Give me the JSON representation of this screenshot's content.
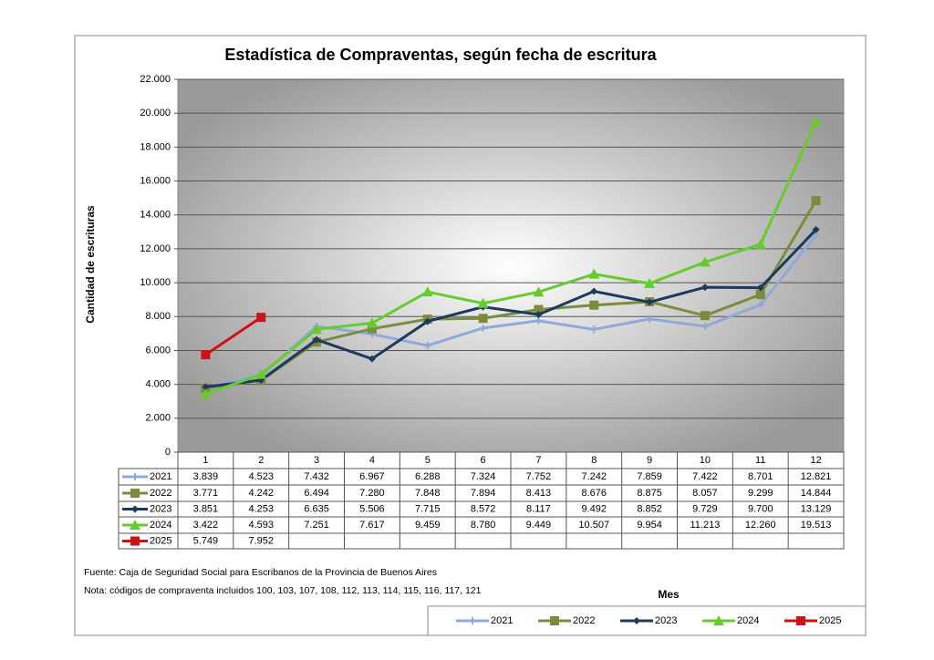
{
  "chart_data": {
    "type": "line",
    "title": "Estadística de Compraventas, según fecha de escritura",
    "y_label": "Cantidad de escrituras",
    "x_label": "Mes",
    "source": "Fuente: Caja de Seguridad Social para Escribanos de la Provincia de Buenos Aires",
    "note": "Nota: códigos de compraventa incluidos 100, 103, 107, 108, 112, 113, 114, 115, 116, 117, 121",
    "categories": [
      "1",
      "2",
      "3",
      "4",
      "5",
      "6",
      "7",
      "8",
      "9",
      "10",
      "11",
      "12"
    ],
    "ylim": [
      0,
      22000
    ],
    "yticks": [
      0,
      {
        "value": 2000,
        "label": "2.000"
      },
      {
        "value": 4000,
        "label": "4.000"
      },
      {
        "value": 6000,
        "label": "6.000"
      },
      {
        "value": 8000,
        "label": "8.000"
      },
      {
        "value": 10000,
        "label": "10.000"
      },
      {
        "value": 12000,
        "label": "12.000"
      },
      {
        "value": 14000,
        "label": "14.000"
      },
      {
        "value": 16000,
        "label": "16.000"
      },
      {
        "value": 18000,
        "label": "18.000"
      },
      {
        "value": 20000,
        "label": "20.000"
      },
      {
        "value": 22000,
        "label": "22.000"
      }
    ],
    "grid": true,
    "series": [
      {
        "name": "2021",
        "color": "#8faad8",
        "marker": "plus",
        "values": [
          3839,
          4523,
          7432,
          6967,
          6288,
          7324,
          7752,
          7242,
          7859,
          7422,
          8701,
          12821
        ],
        "value_labels": [
          "3.839",
          "4.523",
          "7.432",
          "6.967",
          "6.288",
          "7.324",
          "7.752",
          "7.242",
          "7.859",
          "7.422",
          "8.701",
          "12.821"
        ]
      },
      {
        "name": "2022",
        "color": "#7b8c3c",
        "marker": "square",
        "values": [
          3771,
          4242,
          6494,
          7280,
          7848,
          7894,
          8413,
          8676,
          8875,
          8057,
          9299,
          14844
        ],
        "value_labels": [
          "3.771",
          "4.242",
          "6.494",
          "7.280",
          "7.848",
          "7.894",
          "8.413",
          "8.676",
          "8.875",
          "8.057",
          "9.299",
          "14.844"
        ]
      },
      {
        "name": "2023",
        "color": "#1d3a5e",
        "marker": "diamond",
        "values": [
          3851,
          4253,
          6635,
          5506,
          7715,
          8572,
          8117,
          9492,
          8852,
          9729,
          9700,
          13129
        ],
        "value_labels": [
          "3.851",
          "4.253",
          "6.635",
          "5.506",
          "7.715",
          "8.572",
          "8.117",
          "9.492",
          "8.852",
          "9.729",
          "9.700",
          "13.129"
        ]
      },
      {
        "name": "2024",
        "color": "#66cc2e",
        "marker": "triangle",
        "values": [
          3422,
          4593,
          7251,
          7617,
          9459,
          8780,
          9449,
          10507,
          9954,
          11213,
          12260,
          19513
        ],
        "value_labels": [
          "3.422",
          "4.593",
          "7.251",
          "7.617",
          "9.459",
          "8.780",
          "9.449",
          "10.507",
          "9.954",
          "11.213",
          "12.260",
          "19.513"
        ]
      },
      {
        "name": "2025",
        "color": "#cc1212",
        "marker": "square",
        "values": [
          5749,
          7952,
          null,
          null,
          null,
          null,
          null,
          null,
          null,
          null,
          null,
          null
        ],
        "value_labels": [
          "5.749",
          "7.952",
          null,
          null,
          null,
          null,
          null,
          null,
          null,
          null,
          null,
          null
        ]
      }
    ]
  }
}
